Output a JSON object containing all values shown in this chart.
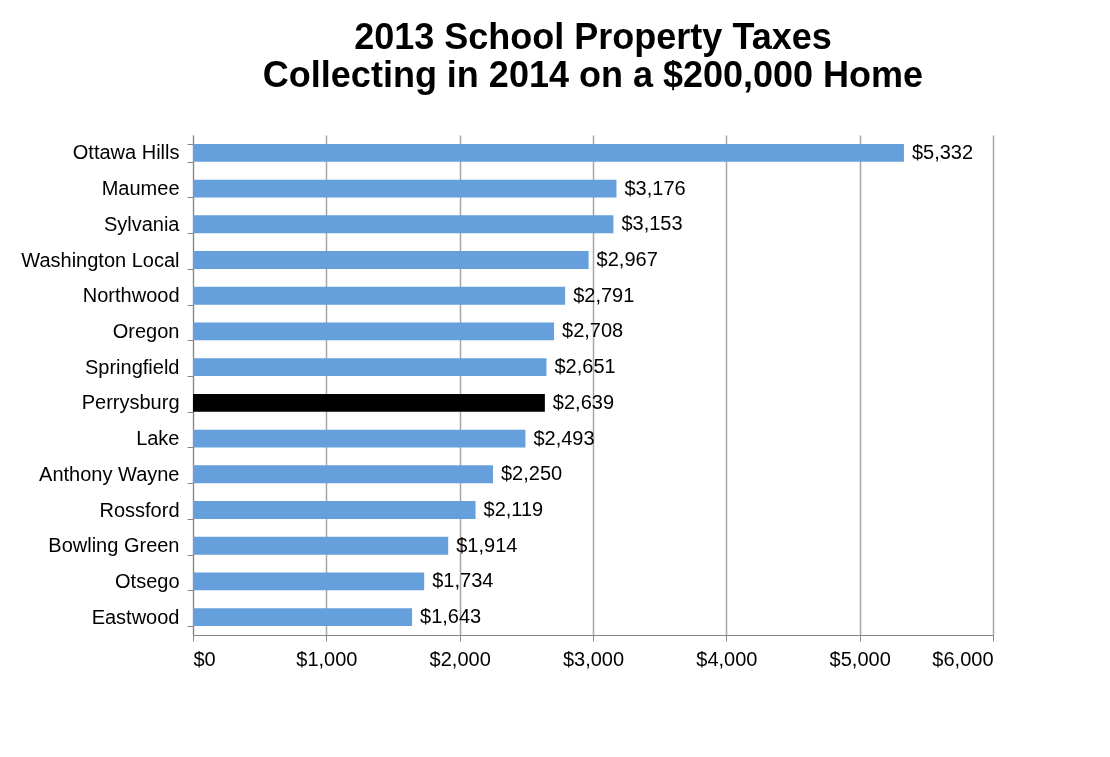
{
  "chart_data": {
    "type": "bar",
    "orientation": "horizontal",
    "title": [
      "2013 School Property Taxes",
      "Collecting in 2014 on a $200,000 Home"
    ],
    "categories": [
      "Ottawa Hills",
      "Maumee",
      "Sylvania",
      "Washington Local",
      "Northwood",
      "Oregon",
      "Springfield",
      "Perrysburg",
      "Lake",
      "Anthony Wayne",
      "Rossford",
      "Bowling Green",
      "Otsego",
      "Eastwood"
    ],
    "values": [
      5332,
      3176,
      3153,
      2967,
      2791,
      2708,
      2651,
      2639,
      2493,
      2250,
      2119,
      1914,
      1734,
      1643
    ],
    "value_labels": [
      "$5,332",
      "$3,176",
      "$3,153",
      "$2,967",
      "$2,791",
      "$2,708",
      "$2,651",
      "$2,639",
      "$2,493",
      "$2,250",
      "$2,119",
      "$1,914",
      "$1,734",
      "$1,643"
    ],
    "colors": [
      "#659fdc",
      "#659fdc",
      "#659fdc",
      "#659fdc",
      "#659fdc",
      "#659fdc",
      "#659fdc",
      "#000000",
      "#659fdc",
      "#659fdc",
      "#659fdc",
      "#659fdc",
      "#659fdc",
      "#659fdc"
    ],
    "xlim": [
      0,
      6000
    ],
    "xticks": [
      {
        "value": 0,
        "label": "$0"
      },
      {
        "value": 1000,
        "label": "$1,000"
      },
      {
        "value": 2000,
        "label": "$2,000"
      },
      {
        "value": 3000,
        "label": "$3,000"
      },
      {
        "value": 4000,
        "label": "$4,000"
      },
      {
        "value": 5000,
        "label": "$5,000"
      },
      {
        "value": 6000,
        "label": "$6,000"
      }
    ],
    "grid": "x"
  }
}
